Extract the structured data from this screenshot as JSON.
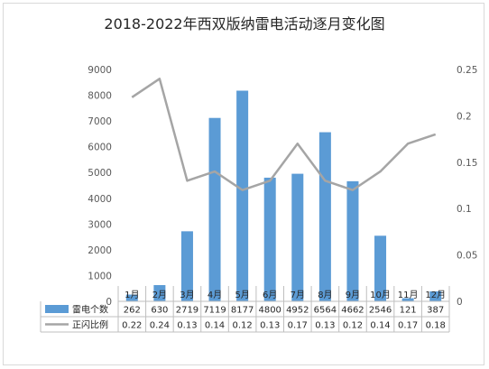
{
  "chart_data": {
    "type": "bar",
    "title": "2018-2022年西双版纳雷电活动逐月变化图",
    "categories": [
      "1月",
      "2月",
      "3月",
      "4月",
      "5月",
      "6月",
      "7月",
      "8月",
      "9月",
      "10月",
      "11月",
      "12月"
    ],
    "series": [
      {
        "name": "雷电个数",
        "type": "bar",
        "axis": "left",
        "color": "#5b9bd5",
        "values": [
          262,
          630,
          2719,
          7119,
          8177,
          4800,
          4952,
          6564,
          4662,
          2546,
          121,
          387
        ],
        "labels": [
          "262",
          "630",
          "2719",
          "7119",
          "8177",
          "4800",
          "4952",
          "6564",
          "4662",
          "2546",
          "121",
          "387"
        ]
      },
      {
        "name": "正闪比例",
        "type": "line",
        "axis": "right",
        "color": "#a5a5a5",
        "values": [
          0.22,
          0.24,
          0.13,
          0.14,
          0.12,
          0.13,
          0.17,
          0.13,
          0.12,
          0.14,
          0.17,
          0.18
        ],
        "labels": [
          "0.22",
          "0.24",
          "0.13",
          "0.14",
          "0.12",
          "0.13",
          "0.17",
          "0.13",
          "0.12",
          "0.14",
          "0.17",
          "0.18"
        ]
      }
    ],
    "y_left": {
      "ylim": [
        0,
        9000
      ],
      "ticks": [
        "0",
        "1000",
        "2000",
        "3000",
        "4000",
        "5000",
        "6000",
        "7000",
        "8000",
        "9000"
      ]
    },
    "y_right": {
      "ylim": [
        0,
        0.25
      ],
      "ticks": [
        "0",
        "0.05",
        "0.1",
        "0.15",
        "0.2",
        "0.25"
      ]
    },
    "grid": false,
    "legend": "data table below plot"
  }
}
